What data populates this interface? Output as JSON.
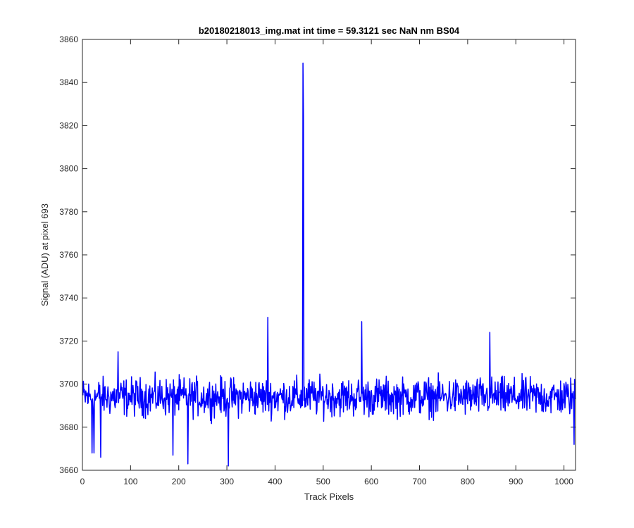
{
  "chart_data": {
    "type": "line",
    "title": "b20180218013_img.mat int time = 59.3121 sec  NaN nm BS04",
    "xlabel": "Track Pixels",
    "ylabel": "Signal (ADU) at pixel 693",
    "xlim": [
      0,
      1024
    ],
    "ylim": [
      3660,
      3860
    ],
    "xticks": [
      0,
      100,
      200,
      300,
      400,
      500,
      600,
      700,
      800,
      900,
      1000
    ],
    "yticks": [
      3660,
      3680,
      3700,
      3720,
      3740,
      3760,
      3780,
      3800,
      3820,
      3840,
      3860
    ],
    "grid": false,
    "series_color": "#0000ff",
    "series": [
      {
        "x_start": 1,
        "x_step": 1,
        "y_mean": 3694,
        "y_noise_amplitude": 10,
        "points_count": 1024,
        "notable_points": [
          {
            "x": 20,
            "y": 3668
          },
          {
            "x": 24,
            "y": 3668
          },
          {
            "x": 38,
            "y": 3666
          },
          {
            "x": 74,
            "y": 3715
          },
          {
            "x": 188,
            "y": 3667
          },
          {
            "x": 219,
            "y": 3663
          },
          {
            "x": 303,
            "y": 3662
          },
          {
            "x": 385,
            "y": 3731
          },
          {
            "x": 458,
            "y": 3849
          },
          {
            "x": 459,
            "y": 3824
          },
          {
            "x": 580,
            "y": 3729
          },
          {
            "x": 846,
            "y": 3724
          },
          {
            "x": 1021,
            "y": 3672
          }
        ]
      }
    ]
  }
}
